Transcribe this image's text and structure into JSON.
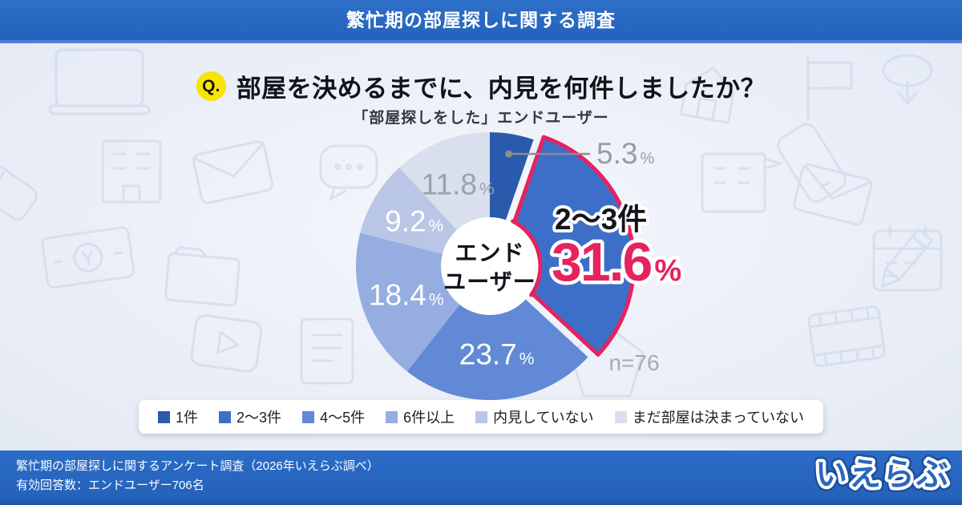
{
  "header": {
    "title": "繁忙期の部屋探しに関する調査"
  },
  "question": {
    "badge": "Q.",
    "text": "部屋を決めるまでに、内見を何件しましたか？",
    "subtitle": "「部屋探しをした」エンドユーザー"
  },
  "chart_data": {
    "type": "pie",
    "donut": true,
    "title": "部屋を決めるまでに、内見を何件しましたか？",
    "subtitle": "「部屋探しをした」エンドユーザー",
    "direction": "clockwise",
    "start_angle_deg": 0,
    "center_label": [
      "エンド",
      "ユーザー"
    ],
    "sample_size_note": "n=76",
    "percent_sign": "%",
    "legend_position": "bottom",
    "segments": [
      {
        "label": "1件",
        "value": 5.3,
        "color": "#2a5aab",
        "label_style": "leader",
        "label_color": "#9b9ba2"
      },
      {
        "label": "2〜3件",
        "value": 31.6,
        "color": "#3d6fc8",
        "label_style": "callout",
        "highlighted": true
      },
      {
        "label": "4〜5件",
        "value": 23.7,
        "color": "#6189d5",
        "label_style": "inside",
        "label_color": "#ffffff"
      },
      {
        "label": "6件以上",
        "value": 18.4,
        "color": "#95ade0",
        "label_style": "inside",
        "label_color": "#ffffff"
      },
      {
        "label": "内見していない",
        "value": 9.2,
        "color": "#b9c6e5",
        "label_style": "inside",
        "label_color": "#ffffff"
      },
      {
        "label": "まだ部屋は決まっていない",
        "value": 11.8,
        "color": "#d9dfec",
        "label_style": "inside",
        "label_color": "#9ba1ae"
      }
    ],
    "highlight": {
      "label": "2〜3件",
      "value_text": "31.6",
      "color": "#e5235f"
    }
  },
  "footer": {
    "line1": "繁忙期の部屋探しに関するアンケート調査（2026年いえらぶ調べ）",
    "line2": "有効回答数：エンドユーザー706名",
    "logo": "いえらぶ"
  },
  "theme": {
    "bar_blue": "#2b6cc7",
    "badge_yellow": "#f8e500",
    "accent_pink": "#e5235f",
    "background": "#e9edf6"
  }
}
